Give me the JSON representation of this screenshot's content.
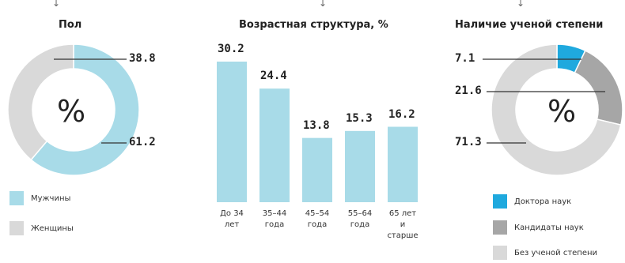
{
  "chart_data": [
    {
      "type": "pie",
      "title": "Пол",
      "center_label": "%",
      "labels": [
        "Мужчины",
        "Женщины"
      ],
      "values": [
        61.2,
        38.8
      ],
      "colors": [
        "#a8dbe8",
        "#d9d9d9"
      ]
    },
    {
      "type": "bar",
      "title": "Возрастная структура, %",
      "categories": [
        "До 34\nлет",
        "35–44\nгода",
        "45–54\nгода",
        "55–64\nгода",
        "65 лет\nи старше"
      ],
      "values": [
        30.2,
        24.4,
        13.8,
        15.3,
        16.2
      ],
      "color": "#a8dbe8",
      "ylim": [
        0,
        30.2
      ]
    },
    {
      "type": "pie",
      "title": "Наличие ученой степени",
      "center_label": "%",
      "labels": [
        "Доктора наук",
        "Кандидаты наук",
        "Без ученой степени"
      ],
      "values": [
        7.1,
        21.6,
        71.3
      ],
      "colors": [
        "#1fa9de",
        "#a6a6a6",
        "#d9d9d9"
      ]
    }
  ]
}
